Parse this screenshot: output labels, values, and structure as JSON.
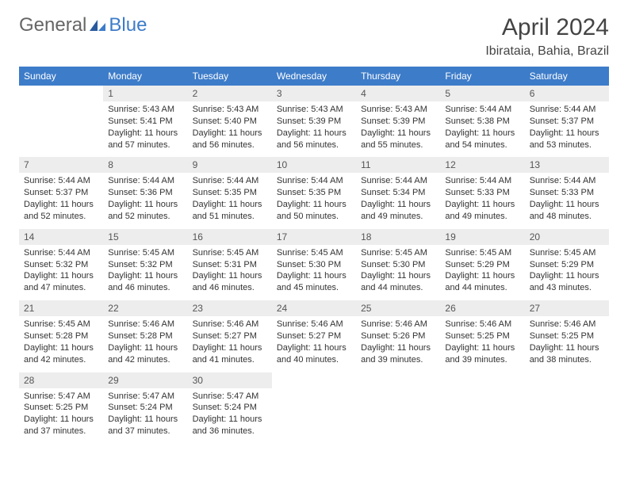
{
  "colors": {
    "header_band": "#3d7cc9",
    "header_text": "#ffffff",
    "daynum_bg": "#ededed",
    "daynum_text": "#555555",
    "body_text": "#333333",
    "rule": "#3d7cc9",
    "page_bg": "#ffffff"
  },
  "typography": {
    "title_fontsize": 30,
    "location_fontsize": 16,
    "weekday_fontsize": 12,
    "daynum_fontsize": 12,
    "cell_fontsize": 11,
    "font_family": "Arial"
  },
  "logo": {
    "general": "General",
    "blue": "Blue"
  },
  "title": "April 2024",
  "location": "Ibirataia, Bahia, Brazil",
  "weekdays": [
    "Sunday",
    "Monday",
    "Tuesday",
    "Wednesday",
    "Thursday",
    "Friday",
    "Saturday"
  ],
  "layout": {
    "columns": 7,
    "first_day_column": 1,
    "days_in_month": 30
  },
  "days": [
    {
      "n": 1,
      "sunrise": "5:43 AM",
      "sunset": "5:41 PM",
      "daylight": "11 hours and 57 minutes."
    },
    {
      "n": 2,
      "sunrise": "5:43 AM",
      "sunset": "5:40 PM",
      "daylight": "11 hours and 56 minutes."
    },
    {
      "n": 3,
      "sunrise": "5:43 AM",
      "sunset": "5:39 PM",
      "daylight": "11 hours and 56 minutes."
    },
    {
      "n": 4,
      "sunrise": "5:43 AM",
      "sunset": "5:39 PM",
      "daylight": "11 hours and 55 minutes."
    },
    {
      "n": 5,
      "sunrise": "5:44 AM",
      "sunset": "5:38 PM",
      "daylight": "11 hours and 54 minutes."
    },
    {
      "n": 6,
      "sunrise": "5:44 AM",
      "sunset": "5:37 PM",
      "daylight": "11 hours and 53 minutes."
    },
    {
      "n": 7,
      "sunrise": "5:44 AM",
      "sunset": "5:37 PM",
      "daylight": "11 hours and 52 minutes."
    },
    {
      "n": 8,
      "sunrise": "5:44 AM",
      "sunset": "5:36 PM",
      "daylight": "11 hours and 52 minutes."
    },
    {
      "n": 9,
      "sunrise": "5:44 AM",
      "sunset": "5:35 PM",
      "daylight": "11 hours and 51 minutes."
    },
    {
      "n": 10,
      "sunrise": "5:44 AM",
      "sunset": "5:35 PM",
      "daylight": "11 hours and 50 minutes."
    },
    {
      "n": 11,
      "sunrise": "5:44 AM",
      "sunset": "5:34 PM",
      "daylight": "11 hours and 49 minutes."
    },
    {
      "n": 12,
      "sunrise": "5:44 AM",
      "sunset": "5:33 PM",
      "daylight": "11 hours and 49 minutes."
    },
    {
      "n": 13,
      "sunrise": "5:44 AM",
      "sunset": "5:33 PM",
      "daylight": "11 hours and 48 minutes."
    },
    {
      "n": 14,
      "sunrise": "5:44 AM",
      "sunset": "5:32 PM",
      "daylight": "11 hours and 47 minutes."
    },
    {
      "n": 15,
      "sunrise": "5:45 AM",
      "sunset": "5:32 PM",
      "daylight": "11 hours and 46 minutes."
    },
    {
      "n": 16,
      "sunrise": "5:45 AM",
      "sunset": "5:31 PM",
      "daylight": "11 hours and 46 minutes."
    },
    {
      "n": 17,
      "sunrise": "5:45 AM",
      "sunset": "5:30 PM",
      "daylight": "11 hours and 45 minutes."
    },
    {
      "n": 18,
      "sunrise": "5:45 AM",
      "sunset": "5:30 PM",
      "daylight": "11 hours and 44 minutes."
    },
    {
      "n": 19,
      "sunrise": "5:45 AM",
      "sunset": "5:29 PM",
      "daylight": "11 hours and 44 minutes."
    },
    {
      "n": 20,
      "sunrise": "5:45 AM",
      "sunset": "5:29 PM",
      "daylight": "11 hours and 43 minutes."
    },
    {
      "n": 21,
      "sunrise": "5:45 AM",
      "sunset": "5:28 PM",
      "daylight": "11 hours and 42 minutes."
    },
    {
      "n": 22,
      "sunrise": "5:46 AM",
      "sunset": "5:28 PM",
      "daylight": "11 hours and 42 minutes."
    },
    {
      "n": 23,
      "sunrise": "5:46 AM",
      "sunset": "5:27 PM",
      "daylight": "11 hours and 41 minutes."
    },
    {
      "n": 24,
      "sunrise": "5:46 AM",
      "sunset": "5:27 PM",
      "daylight": "11 hours and 40 minutes."
    },
    {
      "n": 25,
      "sunrise": "5:46 AM",
      "sunset": "5:26 PM",
      "daylight": "11 hours and 39 minutes."
    },
    {
      "n": 26,
      "sunrise": "5:46 AM",
      "sunset": "5:25 PM",
      "daylight": "11 hours and 39 minutes."
    },
    {
      "n": 27,
      "sunrise": "5:46 AM",
      "sunset": "5:25 PM",
      "daylight": "11 hours and 38 minutes."
    },
    {
      "n": 28,
      "sunrise": "5:47 AM",
      "sunset": "5:25 PM",
      "daylight": "11 hours and 37 minutes."
    },
    {
      "n": 29,
      "sunrise": "5:47 AM",
      "sunset": "5:24 PM",
      "daylight": "11 hours and 37 minutes."
    },
    {
      "n": 30,
      "sunrise": "5:47 AM",
      "sunset": "5:24 PM",
      "daylight": "11 hours and 36 minutes."
    }
  ],
  "labels": {
    "sunrise": "Sunrise:",
    "sunset": "Sunset:",
    "daylight": "Daylight:"
  }
}
